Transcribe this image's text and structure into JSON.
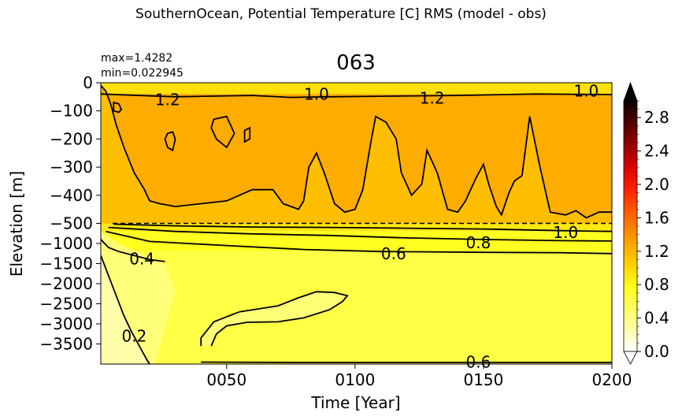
{
  "figure": {
    "suptitle": "SouthernOcean, Potential Temperature [C] RMS (model - obs)",
    "stat_max": "max=1.4282",
    "stat_min": "min=0.022945"
  },
  "chart_data": {
    "type": "heatmap",
    "title": "063",
    "xlabel": "Time [Year]",
    "ylabel": "Elevation [m]",
    "xlim": [
      1,
      200
    ],
    "x_ticks": [
      50,
      100,
      150,
      200
    ],
    "x_tick_labels": [
      "0050",
      "0100",
      "0150",
      "0200"
    ],
    "y_ticks": [
      0,
      -100,
      -200,
      -300,
      -400,
      -500,
      -1000,
      -1500,
      -2000,
      -2500,
      -3000,
      -3500
    ],
    "y_tick_labels": [
      "0",
      "−100",
      "−200",
      "−300",
      "−400",
      "−500",
      "−1000",
      "−1500",
      "−2000",
      "−2500",
      "−3000",
      "−3500"
    ],
    "y_scale": "linear 0 to -500 in upper half, linear -500 to -4000 in lower half",
    "ylim": [
      0,
      -4000
    ],
    "split_depth": -500,
    "colorbar": {
      "colormap": "hot_r",
      "vmin": 0.0,
      "vmax": 3.0,
      "extend": "both",
      "ticks": [
        0.0,
        0.4,
        0.8,
        1.2,
        1.6,
        2.0,
        2.4,
        2.8
      ],
      "tick_labels": [
        "0.0",
        "0.4",
        "0.8",
        "1.2",
        "1.6",
        "2.0",
        "2.4",
        "2.8"
      ]
    },
    "contour_levels": [
      0.2,
      0.4,
      0.6,
      0.8,
      1.0,
      1.2
    ],
    "contour_labels": [
      {
        "text": "1.2",
        "x": 27,
        "depth": -60
      },
      {
        "text": "1.0",
        "x": 85,
        "depth": -40
      },
      {
        "text": "1.2",
        "x": 130,
        "depth": -55
      },
      {
        "text": "1.0",
        "x": 190,
        "depth": -30
      },
      {
        "text": "1.0",
        "x": 182,
        "depth": -730
      },
      {
        "text": "0.8",
        "x": 148,
        "depth": -980
      },
      {
        "text": "0.6",
        "x": 115,
        "depth": -1250
      },
      {
        "text": "0.4",
        "x": 17,
        "depth": -1380
      },
      {
        "text": "0.2",
        "x": 14,
        "depth": -3300
      },
      {
        "text": "0.6",
        "x": 148,
        "depth": -3950
      }
    ],
    "contours": [
      {
        "level": 1.0,
        "points": [
          [
            1,
            -10
          ],
          [
            3,
            -30
          ],
          [
            5,
            -80
          ],
          [
            7,
            -150
          ],
          [
            10,
            -230
          ],
          [
            14,
            -320
          ],
          [
            18,
            -380
          ],
          [
            20,
            -420
          ],
          [
            24,
            -430
          ],
          [
            30,
            -440
          ],
          [
            40,
            -430
          ],
          [
            50,
            -420
          ],
          [
            60,
            -380
          ],
          [
            68,
            -380
          ],
          [
            72,
            -430
          ],
          [
            78,
            -450
          ],
          [
            80,
            -420
          ],
          [
            82,
            -300
          ],
          [
            85,
            -250
          ],
          [
            88,
            -320
          ],
          [
            92,
            -430
          ],
          [
            96,
            -460
          ],
          [
            100,
            -450
          ],
          [
            103,
            -380
          ],
          [
            106,
            -220
          ],
          [
            108,
            -120
          ],
          [
            112,
            -140
          ],
          [
            116,
            -200
          ],
          [
            118,
            -320
          ],
          [
            122,
            -400
          ],
          [
            126,
            -360
          ],
          [
            128,
            -240
          ],
          [
            132,
            -320
          ],
          [
            136,
            -450
          ],
          [
            140,
            -460
          ],
          [
            143,
            -420
          ],
          [
            147,
            -340
          ],
          [
            150,
            -290
          ],
          [
            152,
            -360
          ],
          [
            155,
            -440
          ],
          [
            157,
            -470
          ],
          [
            160,
            -390
          ],
          [
            162,
            -350
          ],
          [
            165,
            -330
          ],
          [
            168,
            -120
          ],
          [
            172,
            -300
          ],
          [
            176,
            -460
          ],
          [
            182,
            -470
          ],
          [
            186,
            -455
          ],
          [
            190,
            -480
          ],
          [
            195,
            -460
          ],
          [
            200,
            -460
          ]
        ]
      },
      {
        "level": 1.0,
        "points": [
          [
            1,
            -40
          ],
          [
            30,
            -50
          ],
          [
            60,
            -45
          ],
          [
            75,
            -52
          ],
          [
            90,
            -50
          ],
          [
            110,
            -48
          ],
          [
            140,
            -45
          ],
          [
            170,
            -40
          ],
          [
            200,
            -42
          ]
        ]
      },
      {
        "level": 1.0,
        "points": [
          [
            6,
            -520
          ],
          [
            30,
            -560
          ],
          [
            60,
            -590
          ],
          [
            90,
            -600
          ],
          [
            120,
            -620
          ],
          [
            150,
            -640
          ],
          [
            180,
            -680
          ],
          [
            200,
            -700
          ]
        ]
      },
      {
        "level": 0.8,
        "points": [
          [
            4,
            -600
          ],
          [
            30,
            -700
          ],
          [
            60,
            -760
          ],
          [
            90,
            -800
          ],
          [
            120,
            -860
          ],
          [
            150,
            -900
          ],
          [
            180,
            -930
          ],
          [
            200,
            -940
          ]
        ]
      },
      {
        "level": 0.6,
        "points": [
          [
            3,
            -700
          ],
          [
            20,
            -950
          ],
          [
            50,
            -1050
          ],
          [
            80,
            -1150
          ],
          [
            110,
            -1200
          ],
          [
            150,
            -1220
          ],
          [
            180,
            -1230
          ],
          [
            200,
            -1250
          ]
        ]
      },
      {
        "level": 0.4,
        "points": [
          [
            1,
            -900
          ],
          [
            4,
            -1100
          ],
          [
            8,
            -1200
          ],
          [
            14,
            -1300
          ],
          [
            20,
            -1400
          ],
          [
            26,
            -1450
          ]
        ]
      },
      {
        "level": 0.2,
        "points": [
          [
            1,
            -1300
          ],
          [
            4,
            -1800
          ],
          [
            7,
            -2300
          ],
          [
            10,
            -2800
          ],
          [
            13,
            -3200
          ],
          [
            16,
            -3550
          ],
          [
            19,
            -3900
          ],
          [
            20,
            -4000
          ]
        ]
      },
      {
        "level": 0.6,
        "points": [
          [
            40,
            -3550
          ],
          [
            40,
            -3350
          ],
          [
            45,
            -2950
          ],
          [
            55,
            -2700
          ],
          [
            70,
            -2550
          ],
          [
            78,
            -2350
          ],
          [
            85,
            -2200
          ],
          [
            92,
            -2220
          ],
          [
            97,
            -2300
          ],
          [
            95,
            -2450
          ],
          [
            90,
            -2650
          ],
          [
            80,
            -2850
          ],
          [
            70,
            -2950
          ],
          [
            58,
            -2960
          ],
          [
            50,
            -3050
          ],
          [
            46,
            -3250
          ],
          [
            44,
            -3550
          ]
        ]
      },
      {
        "level": 0.6,
        "points": [
          [
            40,
            -3950
          ],
          [
            80,
            -3960
          ],
          [
            120,
            -3960
          ],
          [
            160,
            -3960
          ],
          [
            200,
            -3960
          ]
        ]
      }
    ],
    "closed_contours": [
      {
        "level": 1.2,
        "points": [
          [
            6,
            -70
          ],
          [
            8,
            -75
          ],
          [
            9,
            -95
          ],
          [
            8,
            -105
          ],
          [
            6,
            -100
          ],
          [
            6,
            -85
          ]
        ]
      },
      {
        "level": 1.2,
        "points": [
          [
            27,
            -180
          ],
          [
            29,
            -175
          ],
          [
            30,
            -200
          ],
          [
            29,
            -240
          ],
          [
            27,
            -230
          ],
          [
            26,
            -200
          ]
        ]
      },
      {
        "level": 1.2,
        "points": [
          [
            45,
            -130
          ],
          [
            50,
            -120
          ],
          [
            53,
            -180
          ],
          [
            50,
            -230
          ],
          [
            46,
            -200
          ],
          [
            44,
            -160
          ]
        ]
      },
      {
        "level": 1.2,
        "points": [
          [
            57,
            -170
          ],
          [
            59,
            -160
          ],
          [
            59,
            -200
          ],
          [
            57,
            -210
          ]
        ]
      }
    ],
    "field_regions": [
      {
        "value": 0.95,
        "depth_top": 0,
        "depth_bottom": -40
      },
      {
        "value": 1.15,
        "depth_top": -40,
        "depth_bottom": -500
      },
      {
        "value": 0.9,
        "depth_top": -500,
        "depth_bottom": -700
      },
      {
        "value": 0.75,
        "depth_top": -700,
        "depth_bottom": -1200
      },
      {
        "value": 0.62,
        "depth_top": -1200,
        "depth_bottom": -4000
      }
    ]
  }
}
